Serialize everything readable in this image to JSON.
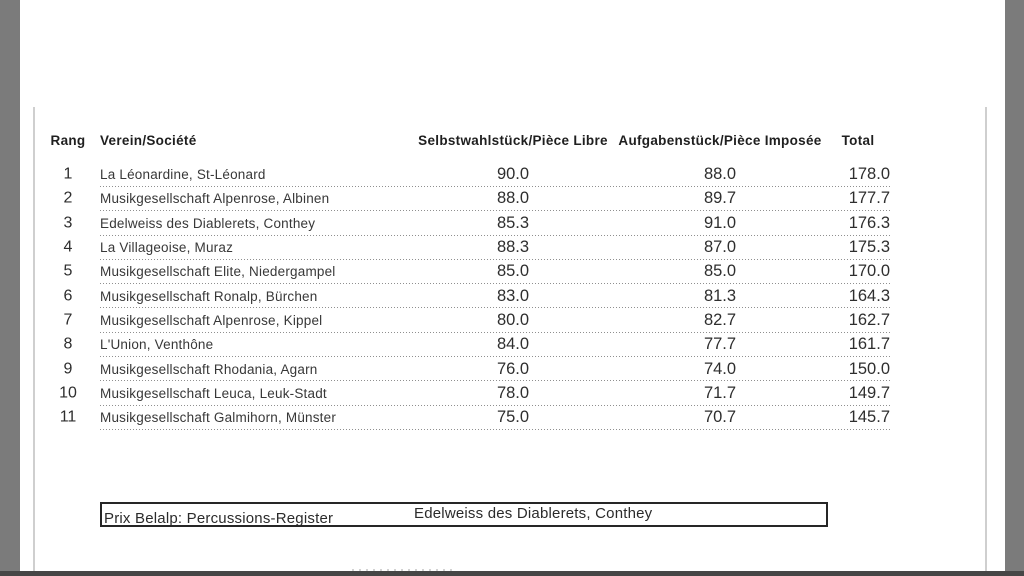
{
  "colors": {
    "bar": "#7b7b7b",
    "bottombar": "#464646",
    "pageline": "#cfcfcf",
    "ink": "#2e2e2e"
  },
  "table": {
    "columns": [
      "Rang",
      "Verein/Société",
      "Selbstwahlstück/Pièce Libre",
      "Aufgabenstück/Pièce Imposée",
      "Total"
    ],
    "rows": [
      {
        "rank": "1",
        "name": "La Léonardine, St-Léonard",
        "libre": "90.0",
        "imposee": "88.0",
        "total": "178.0"
      },
      {
        "rank": "2",
        "name": "Musikgesellschaft Alpenrose, Albinen",
        "libre": "88.0",
        "imposee": "89.7",
        "total": "177.7"
      },
      {
        "rank": "3",
        "name": "Edelweiss des Diablerets, Conthey",
        "libre": "85.3",
        "imposee": "91.0",
        "total": "176.3"
      },
      {
        "rank": "4",
        "name": "La Villageoise, Muraz",
        "libre": "88.3",
        "imposee": "87.0",
        "total": "175.3"
      },
      {
        "rank": "5",
        "name": "Musikgesellschaft Elite, Niedergampel",
        "libre": "85.0",
        "imposee": "85.0",
        "total": "170.0"
      },
      {
        "rank": "6",
        "name": "Musikgesellschaft Ronalp, Bürchen",
        "libre": "83.0",
        "imposee": "81.3",
        "total": "164.3"
      },
      {
        "rank": "7",
        "name": "Musikgesellschaft Alpenrose, Kippel",
        "libre": "80.0",
        "imposee": "82.7",
        "total": "162.7"
      },
      {
        "rank": "8",
        "name": "L'Union, Venthône",
        "libre": "84.0",
        "imposee": "77.7",
        "total": "161.7"
      },
      {
        "rank": "9",
        "name": "Musikgesellschaft Rhodania, Agarn",
        "libre": "76.0",
        "imposee": "74.0",
        "total": "150.0"
      },
      {
        "rank": "10",
        "name": "Musikgesellschaft Leuca, Leuk-Stadt",
        "libre": "78.0",
        "imposee": "71.7",
        "total": "149.7"
      },
      {
        "rank": "11",
        "name": "Musikgesellschaft Galmihorn, Münster",
        "libre": "75.0",
        "imposee": "70.7",
        "total": "145.7"
      }
    ]
  },
  "prize": {
    "label": "Prix Belalp: Percussions-Register",
    "winner": "Edelweiss des Diablerets, Conthey"
  }
}
